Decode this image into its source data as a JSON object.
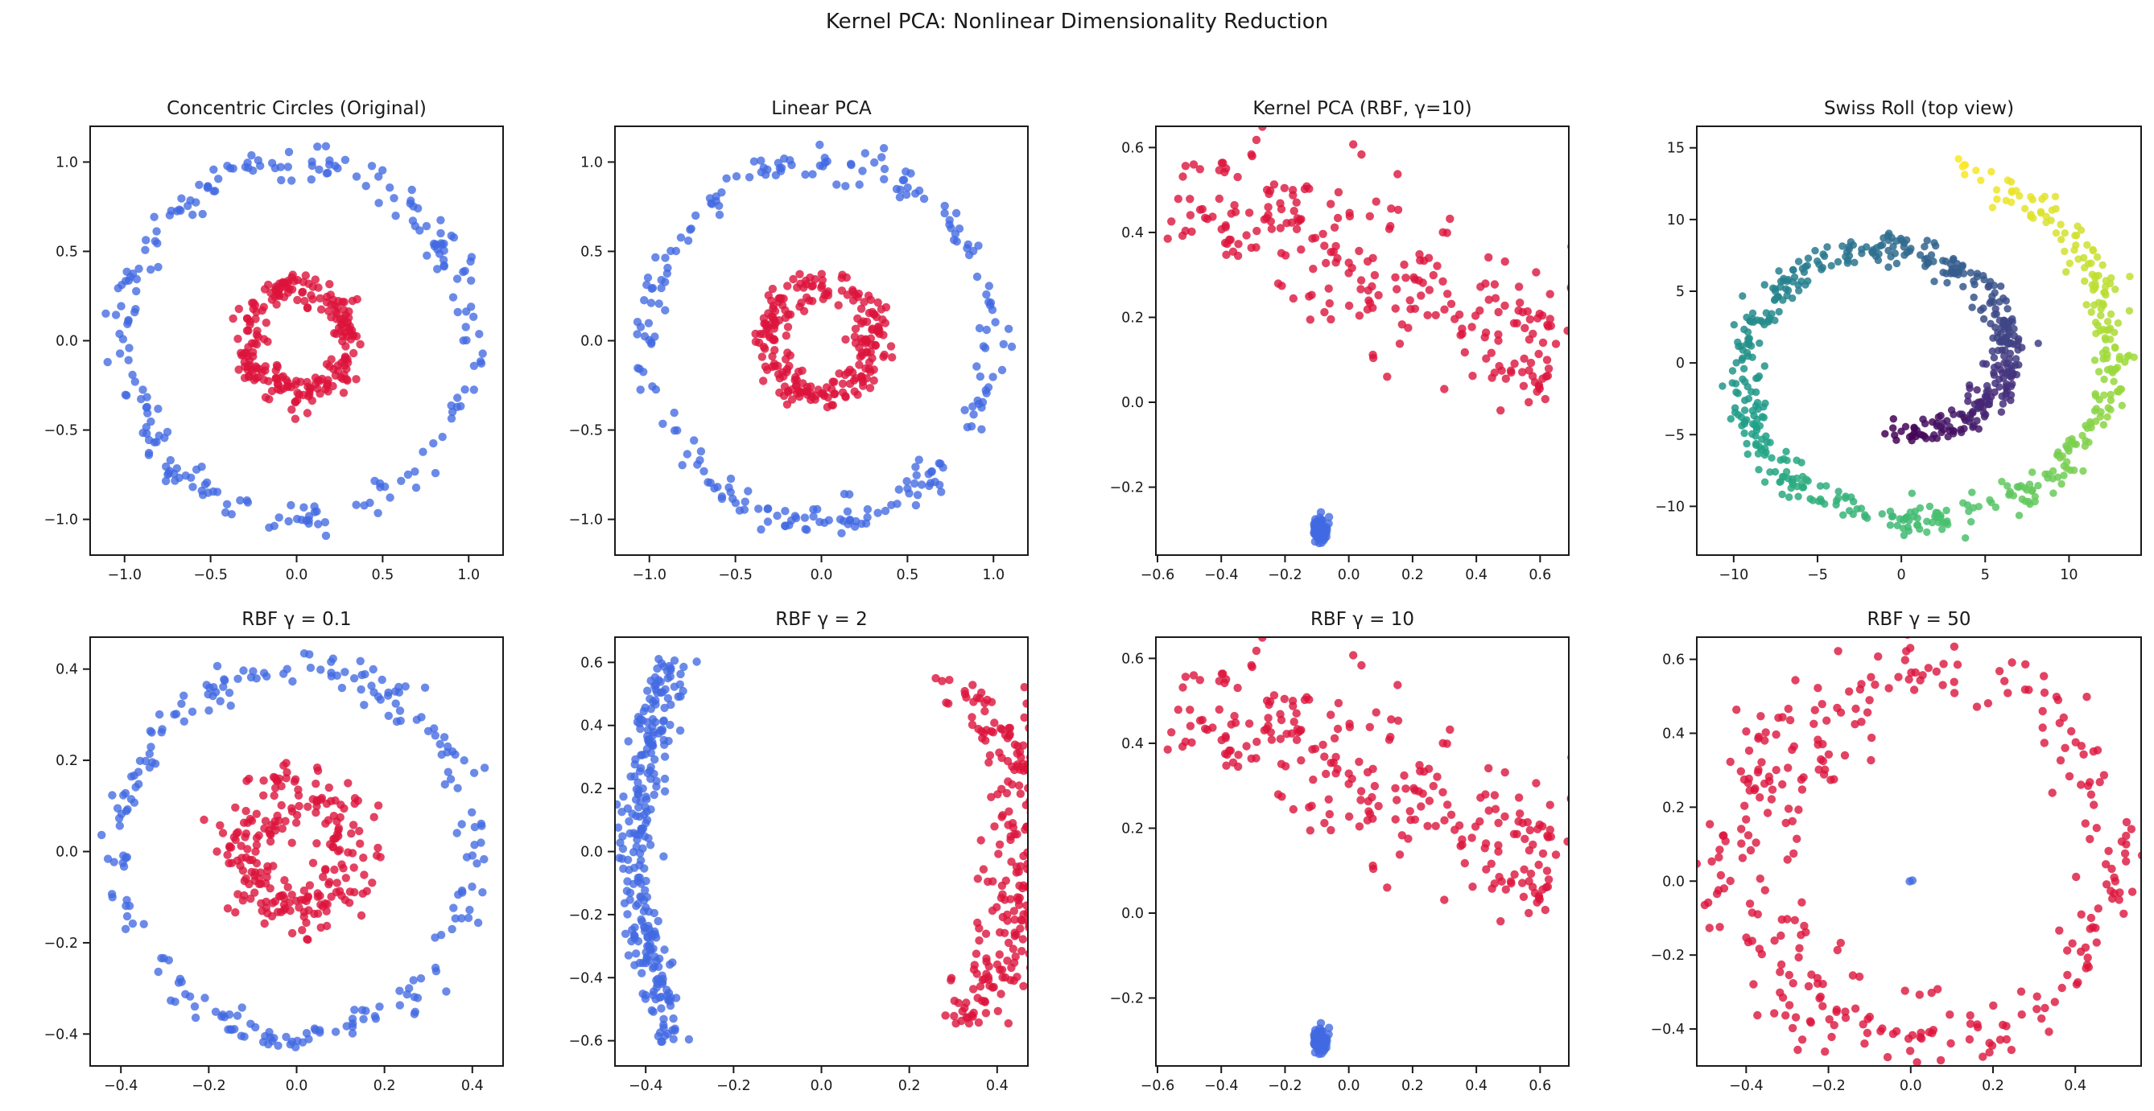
{
  "figure": {
    "suptitle": "Kernel PCA: Nonlinear Dimensionality Reduction",
    "background": "#ffffff"
  },
  "style": {
    "axis_color": "#1a1a1a",
    "text_color": "#1a1a1a",
    "point_colors": {
      "red": "#DC143C",
      "blue": "#4169E1"
    },
    "point_opacity": {
      "red": 0.8,
      "blue": 0.78,
      "viridis": 0.85
    },
    "point_radius": 5.2,
    "spiral_point_radius": 4.7,
    "viridis": [
      "#440154",
      "#46327e",
      "#365c8d",
      "#277f8e",
      "#1fa187",
      "#4ac16d",
      "#a0da39",
      "#fde725"
    ]
  },
  "chart_data": [
    {
      "id": "concentric-circles-original",
      "type": "scatter",
      "row": 0,
      "col": 0,
      "title": "Concentric Circles (Original)",
      "xlim": [
        -1.2,
        1.2
      ],
      "ylim": [
        -1.2,
        1.2
      ],
      "xtick_vals": [
        -1.0,
        -0.5,
        0.0,
        0.5,
        1.0
      ],
      "xtick_labels": [
        "−1.0",
        "−0.5",
        "0.0",
        "0.5",
        "1.0"
      ],
      "ytick_vals": [
        -1.0,
        -0.5,
        0.0,
        0.5,
        1.0
      ],
      "ytick_labels": [
        "−1.0",
        "−0.5",
        "0.0",
        "0.5",
        "1.0"
      ],
      "series": [
        {
          "name": "outer-circle",
          "color": "blue",
          "n": 230,
          "seed": 101,
          "gen": {
            "kind": "ring",
            "cx": 0,
            "cy": 0,
            "rx": 1.0,
            "ry": 1.0,
            "sigma": 0.05
          }
        },
        {
          "name": "inner-circle",
          "color": "red",
          "n": 230,
          "seed": 102,
          "gen": {
            "kind": "ring",
            "cx": 0,
            "cy": 0,
            "rx": 0.3,
            "ry": 0.3,
            "sigma": 0.05
          }
        }
      ]
    },
    {
      "id": "linear-pca",
      "type": "scatter",
      "row": 0,
      "col": 1,
      "title": "Linear PCA",
      "xlim": [
        -1.2,
        1.2
      ],
      "ylim": [
        -1.2,
        1.2
      ],
      "xtick_vals": [
        -1.0,
        -0.5,
        0.0,
        0.5,
        1.0
      ],
      "xtick_labels": [
        "−1.0",
        "−0.5",
        "0.0",
        "0.5",
        "1.0"
      ],
      "ytick_vals": [
        -1.0,
        -0.5,
        0.0,
        0.5,
        1.0
      ],
      "ytick_labels": [
        "−1.0",
        "−0.5",
        "0.0",
        "0.5",
        "1.0"
      ],
      "series": [
        {
          "name": "outer-circle",
          "color": "blue",
          "n": 230,
          "seed": 201,
          "gen": {
            "kind": "ring",
            "cx": 0,
            "cy": 0,
            "rx": 1.0,
            "ry": 1.0,
            "sigma": 0.05
          }
        },
        {
          "name": "inner-circle",
          "color": "red",
          "n": 230,
          "seed": 202,
          "gen": {
            "kind": "ring",
            "cx": 0,
            "cy": 0,
            "rx": 0.3,
            "ry": 0.3,
            "sigma": 0.05
          }
        }
      ]
    },
    {
      "id": "kernel-pca-rbf-gamma-10",
      "type": "scatter",
      "row": 0,
      "col": 2,
      "title": "Kernel PCA (RBF, γ=10)",
      "xlim": [
        -0.605,
        0.69
      ],
      "ylim": [
        -0.36,
        0.65
      ],
      "xtick_vals": [
        -0.6,
        -0.4,
        -0.2,
        0.0,
        0.2,
        0.4,
        0.6
      ],
      "xtick_labels": [
        "−0.6",
        "−0.4",
        "−0.2",
        "0.0",
        "0.2",
        "0.4",
        "0.6"
      ],
      "ytick_vals": [
        -0.2,
        0.0,
        0.2,
        0.4,
        0.6
      ],
      "ytick_labels": [
        "−0.2",
        "0.0",
        "0.2",
        "0.4",
        "0.6"
      ],
      "series": [
        {
          "name": "outer-circle-embedded",
          "color": "red",
          "n": 250,
          "seed": 301,
          "gen": {
            "kind": "band_rot",
            "cx": 0.06,
            "cy": 0.31,
            "len": 0.64,
            "sv": 0.095,
            "angle": -19
          }
        },
        {
          "name": "inner-circle-embedded",
          "color": "blue",
          "n": 90,
          "seed": 302,
          "gen": {
            "kind": "blob",
            "cx": -0.09,
            "cy": -0.3,
            "sx": 0.011,
            "sy": 0.014
          }
        }
      ]
    },
    {
      "id": "swiss-roll-top-view",
      "type": "scatter",
      "row": 0,
      "col": 3,
      "title": "Swiss Roll (top view)",
      "xlim": [
        -12.2,
        14.3
      ],
      "ylim": [
        -13.4,
        16.5
      ],
      "xtick_vals": [
        -10,
        -5,
        0,
        5,
        10
      ],
      "xtick_labels": [
        "−10",
        "−5",
        "0",
        "5",
        "10"
      ],
      "ytick_vals": [
        -10,
        -5,
        0,
        5,
        10,
        15
      ],
      "ytick_labels": [
        "−10",
        "−5",
        "0",
        "5",
        "10",
        "15"
      ],
      "series": [
        {
          "name": "swiss-roll-points",
          "colormap": "viridis",
          "n": 750,
          "seed": 401,
          "gen": {
            "kind": "spiral",
            "t0": 4.72,
            "t1": 13.9,
            "sigma": 0.55
          }
        }
      ]
    },
    {
      "id": "rbf-gamma-0-1",
      "type": "scatter",
      "row": 1,
      "col": 0,
      "title": "RBF γ = 0.1",
      "xlim": [
        -0.47,
        0.47
      ],
      "ylim": [
        -0.47,
        0.47
      ],
      "xtick_vals": [
        -0.4,
        -0.2,
        0.0,
        0.2,
        0.4
      ],
      "xtick_labels": [
        "−0.4",
        "−0.2",
        "0.0",
        "0.2",
        "0.4"
      ],
      "ytick_vals": [
        -0.4,
        -0.2,
        0.0,
        0.2,
        0.4
      ],
      "ytick_labels": [
        "−0.4",
        "−0.2",
        "0.0",
        "0.2",
        "0.4"
      ],
      "series": [
        {
          "name": "outer-circle",
          "color": "blue",
          "n": 230,
          "seed": 501,
          "gen": {
            "kind": "ring",
            "cx": 0,
            "cy": 0,
            "rx": 0.405,
            "ry": 0.405,
            "sigma": 0.02
          }
        },
        {
          "name": "inner-circle",
          "color": "red",
          "n": 230,
          "seed": 502,
          "gen": {
            "kind": "ring",
            "cx": 0,
            "cy": 0,
            "rx": 0.125,
            "ry": 0.125,
            "sigma": 0.035
          }
        }
      ]
    },
    {
      "id": "rbf-gamma-2",
      "type": "scatter",
      "row": 1,
      "col": 1,
      "title": "RBF γ = 2",
      "xlim": [
        -0.47,
        0.47
      ],
      "ylim": [
        -0.68,
        0.68
      ],
      "xtick_vals": [
        -0.4,
        -0.2,
        0.0,
        0.2,
        0.4
      ],
      "xtick_labels": [
        "−0.4",
        "−0.2",
        "0.0",
        "0.2",
        "0.4"
      ],
      "ytick_vals": [
        -0.6,
        -0.4,
        -0.2,
        0.0,
        0.2,
        0.4,
        0.6
      ],
      "ytick_labels": [
        "−0.6",
        "−0.4",
        "−0.2",
        "0.0",
        "0.2",
        "0.4",
        "0.6"
      ],
      "series": [
        {
          "name": "inner-cluster",
          "color": "blue",
          "n": 270,
          "seed": 601,
          "gen": {
            "kind": "band_curve",
            "x0": -0.335,
            "amp": -0.085,
            "ynorm": 0.615,
            "y0": -0.61,
            "y1": 0.615,
            "sigma": 0.022
          }
        },
        {
          "name": "outer-cluster",
          "color": "red",
          "n": 270,
          "seed": 602,
          "gen": {
            "kind": "band_curve",
            "x0": 0.315,
            "amp": 0.16,
            "ynorm": 0.555,
            "y0": -0.555,
            "y1": 0.55,
            "sigma": 0.045
          }
        }
      ]
    },
    {
      "id": "rbf-gamma-10",
      "type": "scatter",
      "row": 1,
      "col": 2,
      "title": "RBF γ = 10",
      "xlim": [
        -0.605,
        0.69
      ],
      "ylim": [
        -0.36,
        0.65
      ],
      "xtick_vals": [
        -0.6,
        -0.4,
        -0.2,
        0.0,
        0.2,
        0.4,
        0.6
      ],
      "xtick_labels": [
        "−0.6",
        "−0.4",
        "−0.2",
        "0.0",
        "0.2",
        "0.4",
        "0.6"
      ],
      "ytick_vals": [
        -0.2,
        0.0,
        0.2,
        0.4,
        0.6
      ],
      "ytick_labels": [
        "−0.2",
        "0.0",
        "0.2",
        "0.4",
        "0.6"
      ],
      "series": [
        {
          "name": "outer-circle-embedded",
          "color": "red",
          "n": 250,
          "seed": 301,
          "gen": {
            "kind": "band_rot",
            "cx": 0.06,
            "cy": 0.31,
            "len": 0.64,
            "sv": 0.095,
            "angle": -19
          }
        },
        {
          "name": "inner-circle-embedded",
          "color": "blue",
          "n": 90,
          "seed": 302,
          "gen": {
            "kind": "blob",
            "cx": -0.09,
            "cy": -0.3,
            "sx": 0.011,
            "sy": 0.014
          }
        }
      ]
    },
    {
      "id": "rbf-gamma-50",
      "type": "scatter",
      "row": 1,
      "col": 3,
      "title": "RBF γ = 50",
      "xlim": [
        -0.52,
        0.56
      ],
      "ylim": [
        -0.5,
        0.66
      ],
      "xtick_vals": [
        -0.4,
        -0.2,
        0.0,
        0.2,
        0.4
      ],
      "xtick_labels": [
        "−0.4",
        "−0.2",
        "0.0",
        "0.2",
        "0.4"
      ],
      "ytick_vals": [
        -0.4,
        -0.2,
        0.0,
        0.2,
        0.4,
        0.6
      ],
      "ytick_labels": [
        "−0.4",
        "−0.2",
        "0.0",
        "0.2",
        "0.4",
        "0.6"
      ],
      "series": [
        {
          "name": "outer-ring",
          "color": "red",
          "n": 260,
          "seed": 801,
          "gen": {
            "kind": "ring",
            "cx": 0.03,
            "cy": 0.07,
            "rx": 0.47,
            "ry": 0.51,
            "sigma": 0.045
          }
        },
        {
          "name": "outer-ring-inner-arc",
          "color": "red",
          "n": 60,
          "seed": 802,
          "gen": {
            "kind": "ring",
            "cx": 0.0,
            "cy": 0.05,
            "rx": 0.34,
            "ry": 0.36,
            "sigma": 0.045,
            "a0": 100,
            "a1": 290
          }
        },
        {
          "name": "center-point",
          "color": "blue",
          "n": 2,
          "seed": 803,
          "gen": {
            "kind": "blob",
            "cx": 0.0,
            "cy": 0.0,
            "sx": 0.002,
            "sy": 0.002
          }
        }
      ]
    }
  ]
}
